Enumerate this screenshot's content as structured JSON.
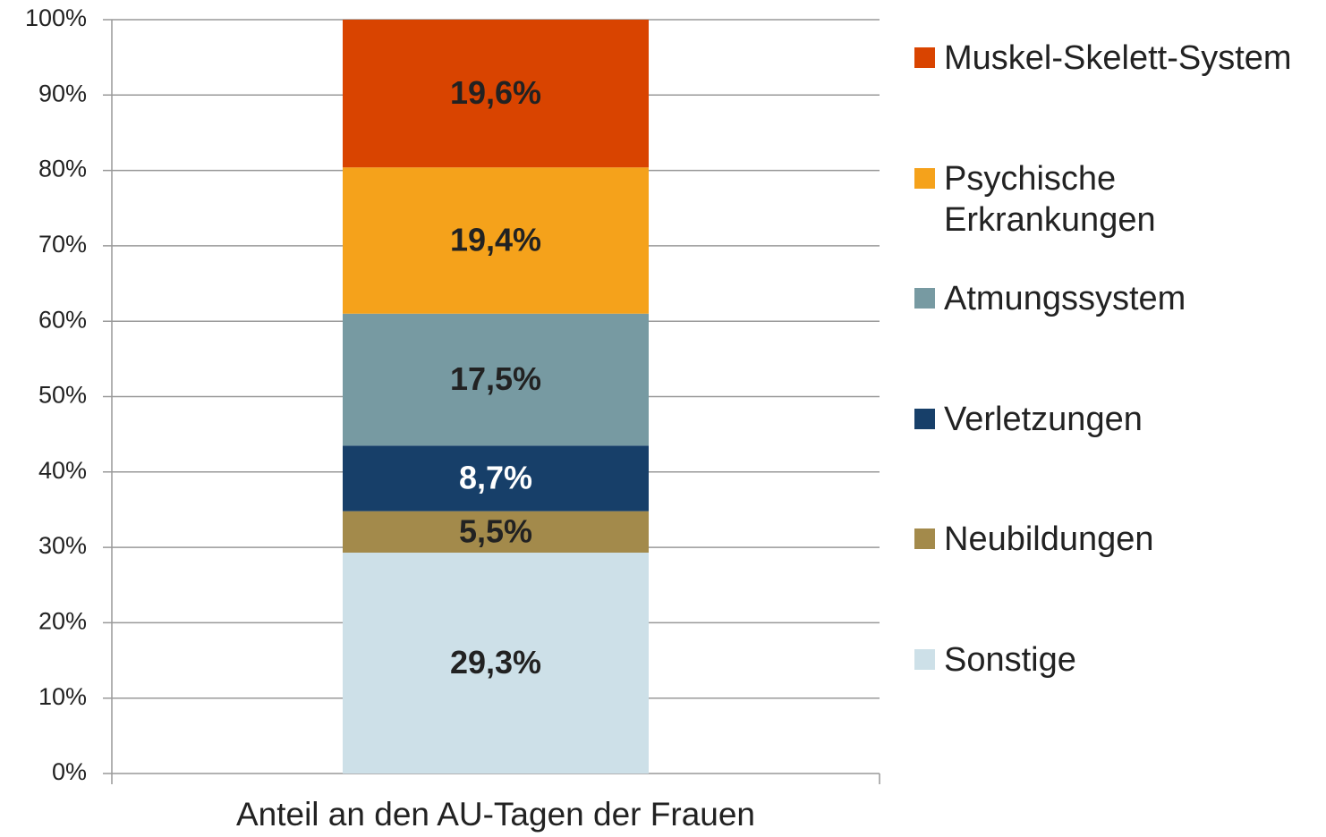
{
  "chart_data": {
    "type": "stacked_bar",
    "categories": [
      "Anteil an den AU-Tagen der Frauen"
    ],
    "series": [
      {
        "name": "Sonstige",
        "color": "#cde0e8",
        "values": [
          29.3
        ],
        "value_labels": [
          "29,3%"
        ]
      },
      {
        "name": "Neubildungen",
        "color": "#a38a4b",
        "values": [
          5.5
        ],
        "value_labels": [
          "5,5%"
        ]
      },
      {
        "name": "Verletzungen",
        "color": "#173f69",
        "values": [
          8.7
        ],
        "value_labels": [
          "8,7%"
        ]
      },
      {
        "name": "Atmungssystem",
        "color": "#779aa2",
        "values": [
          17.5
        ],
        "value_labels": [
          "17,5%"
        ]
      },
      {
        "name": "Psychische Erkrankungen",
        "color": "#f5a21b",
        "values": [
          19.4
        ],
        "value_labels": [
          "19,4%"
        ]
      },
      {
        "name": "Muskel-Skelett-System",
        "color": "#d94400",
        "values": [
          19.6
        ],
        "value_labels": [
          "19,6%"
        ]
      }
    ],
    "ylim": [
      0,
      100
    ],
    "yticks": [
      {
        "value": 0,
        "label": "0%"
      },
      {
        "value": 10,
        "label": "10%"
      },
      {
        "value": 20,
        "label": "20%"
      },
      {
        "value": 30,
        "label": "30%"
      },
      {
        "value": 40,
        "label": "40%"
      },
      {
        "value": 50,
        "label": "50%"
      },
      {
        "value": 60,
        "label": "60%"
      },
      {
        "value": 70,
        "label": "70%"
      },
      {
        "value": 80,
        "label": "80%"
      },
      {
        "value": 90,
        "label": "90%"
      },
      {
        "value": 100,
        "label": "100%"
      }
    ],
    "grid": true,
    "legend": "right"
  }
}
